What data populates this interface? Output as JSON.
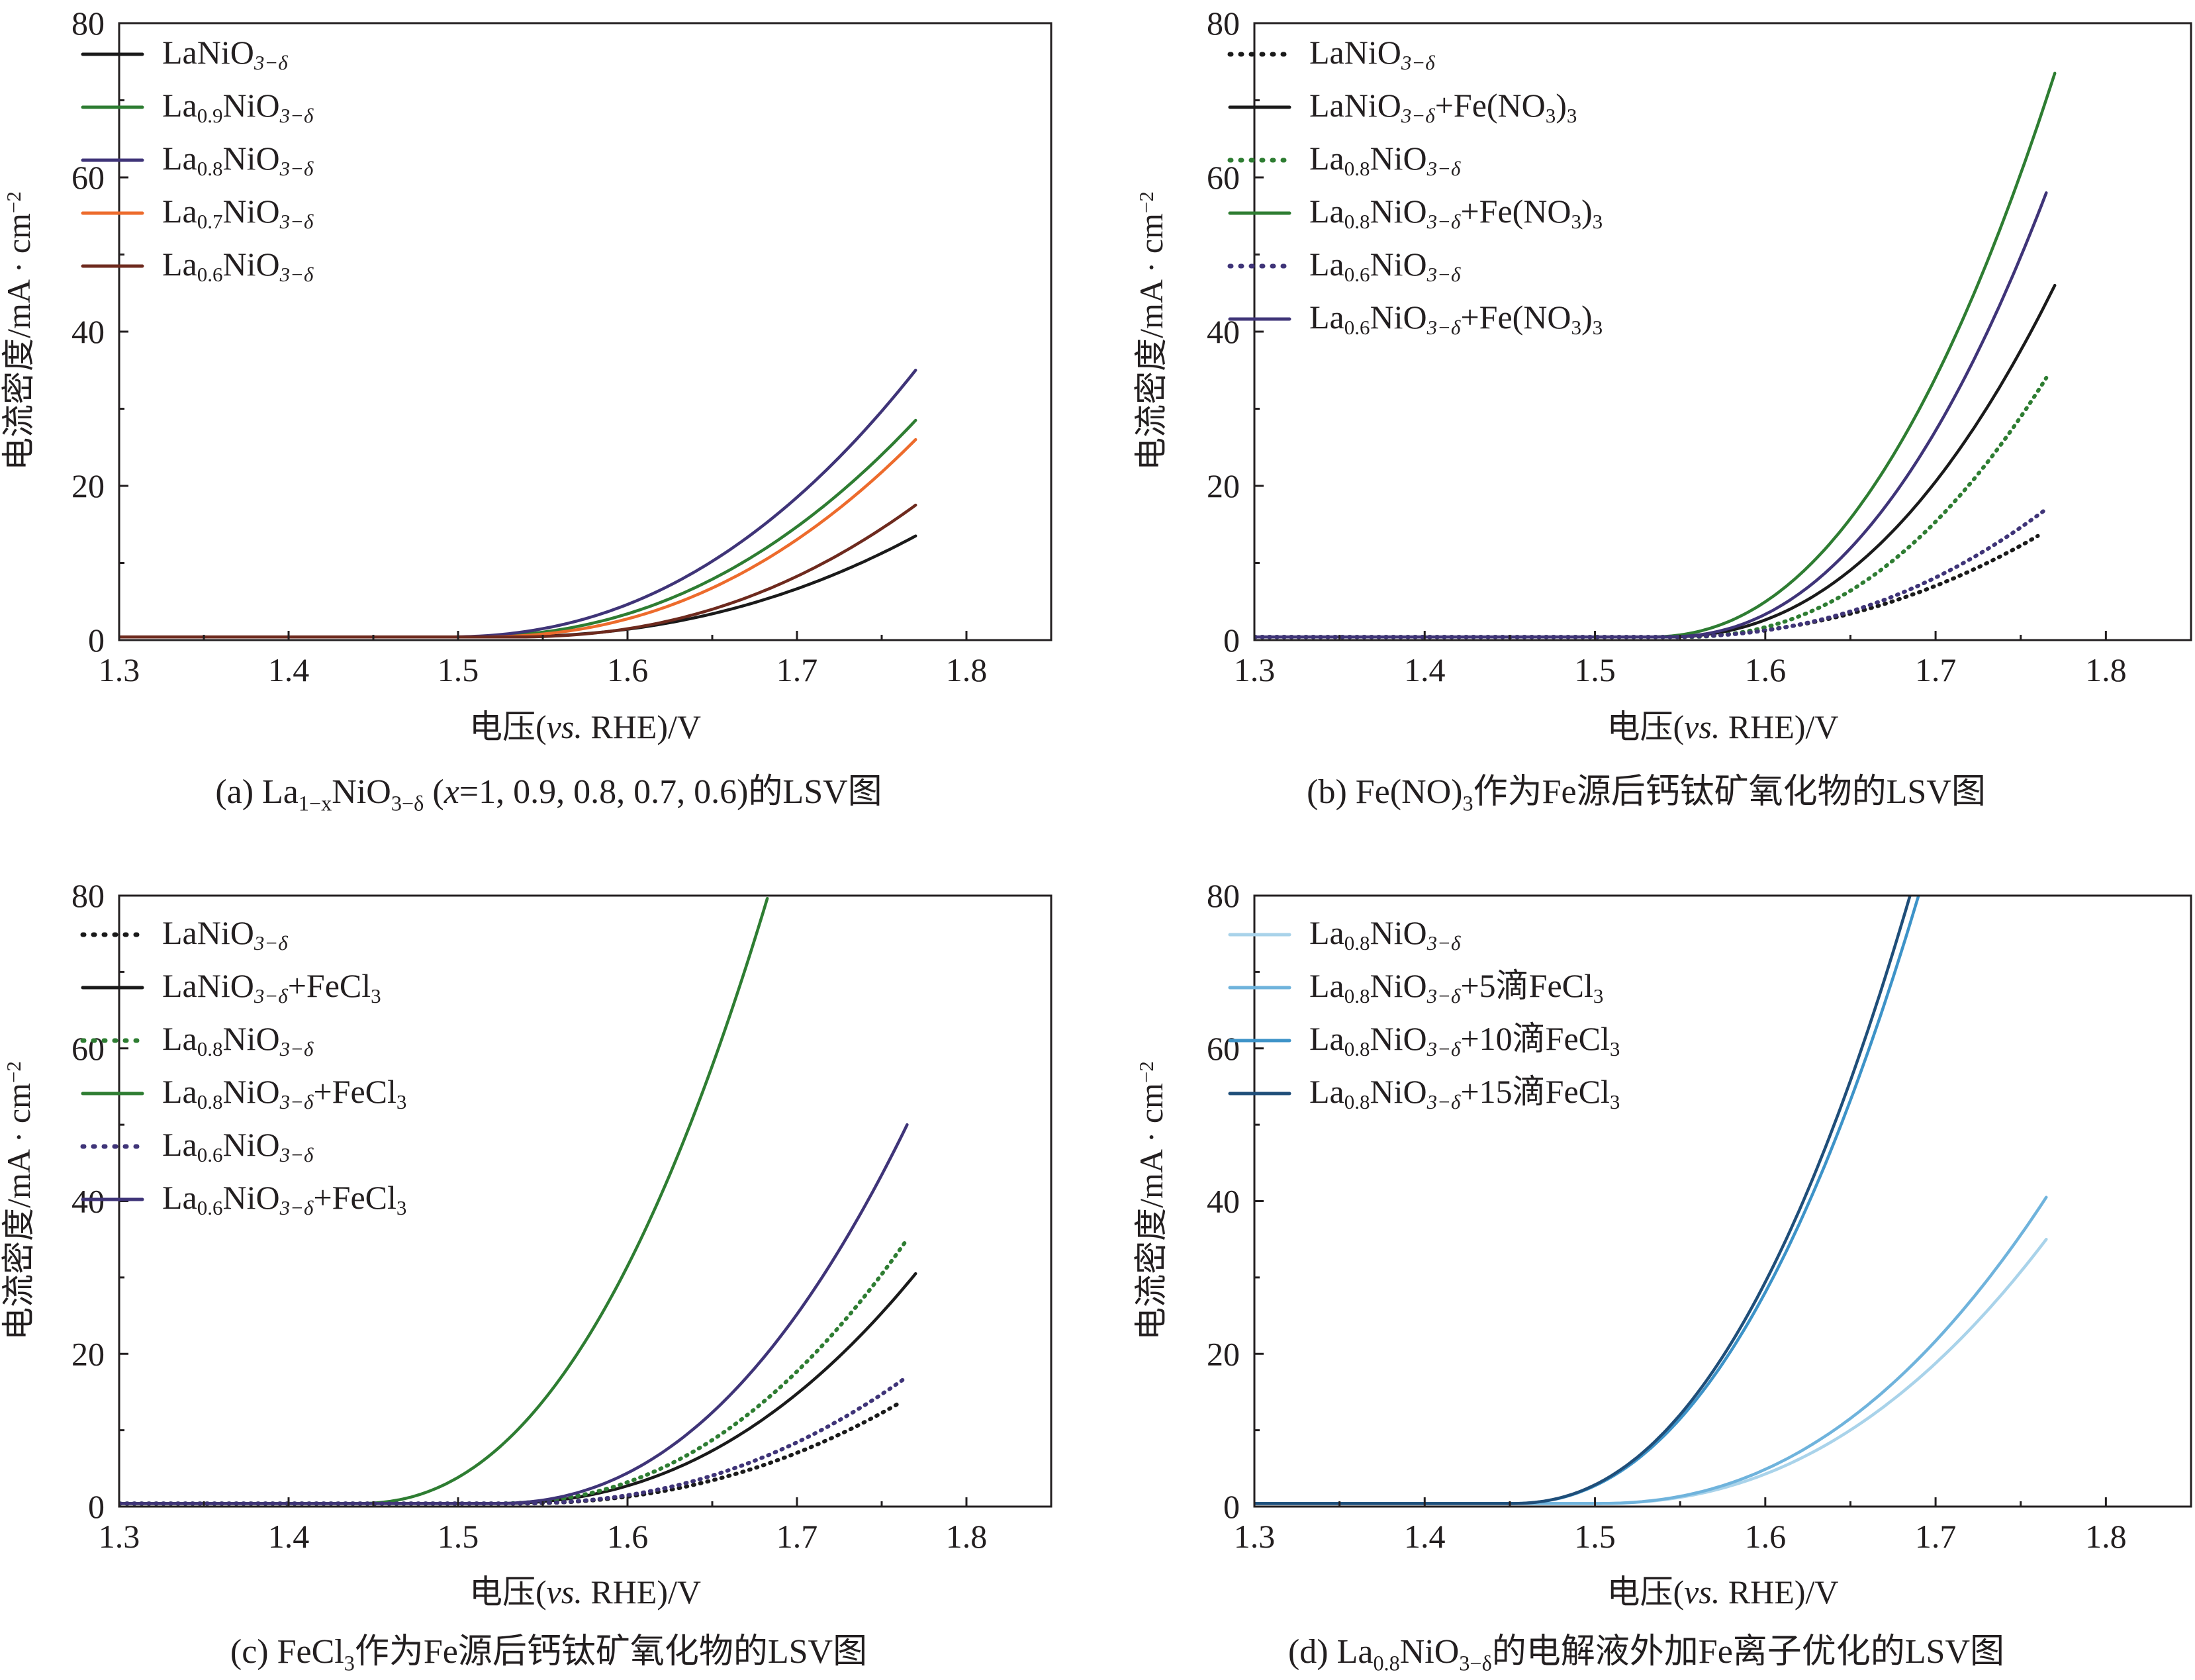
{
  "chart_data": [
    {
      "type": "line",
      "panel_id": "a",
      "caption": "(a) La1−xNiO3−δ (x=1, 0.9, 0.8, 0.7, 0.6)的LSV图",
      "caption_parts": {
        "pre": "(a) La",
        "sub1": "1−x",
        "mid": "NiO",
        "sub2": "3−δ",
        "x_open": " (",
        "x_var": "x",
        "post": "=1, 0.9, 0.8, 0.7, 0.6)的LSV图"
      },
      "xlabel": "电压(vs. RHE)/V",
      "xlabel_parts": {
        "a": "电压(",
        "i": "vs.",
        "b": " RHE)/V"
      },
      "ylabel": "电流密度/mA · cm−2",
      "ylabel_parts": {
        "a": "电流密度/mA · cm",
        "sup": "−2"
      },
      "xlim": [
        1.3,
        1.85
      ],
      "ylim": [
        0,
        80
      ],
      "xticks": [
        "1.3",
        "1.4",
        "1.5",
        "1.6",
        "1.7",
        "1.8"
      ],
      "yticks": [
        "0",
        "20",
        "40",
        "60",
        "80"
      ],
      "series": [
        {
          "name": "LaNiO3−δ",
          "base": "LaNiO",
          "sub": "",
          "o_sub": "3−δ",
          "suffix": "",
          "color": "#1a1a1a",
          "dash": false,
          "model": {
            "onset": 1.52,
            "end": 1.77,
            "final": 13.5
          }
        },
        {
          "name": "La0.9NiO3−δ",
          "base": "La",
          "sub": "0.9",
          "o_sub": "3−δ",
          "suffix": "",
          "color": "#2e7d32",
          "dash": false,
          "model": {
            "onset": 1.5,
            "end": 1.77,
            "final": 28.5
          }
        },
        {
          "name": "La0.8NiO3−δ",
          "base": "La",
          "sub": "0.8",
          "o_sub": "3−δ",
          "suffix": "",
          "color": "#3f3478",
          "dash": false,
          "model": {
            "onset": 1.49,
            "end": 1.77,
            "final": 35
          }
        },
        {
          "name": "La0.7NiO3−δ",
          "base": "La",
          "sub": "0.7",
          "o_sub": "3−δ",
          "suffix": "",
          "color": "#ed6b2c",
          "dash": false,
          "model": {
            "onset": 1.51,
            "end": 1.77,
            "final": 26
          }
        },
        {
          "name": "La0.6NiO3−δ",
          "base": "La",
          "sub": "0.6",
          "o_sub": "3−δ",
          "suffix": "",
          "color": "#6e2a1e",
          "dash": false,
          "model": {
            "onset": 1.53,
            "end": 1.77,
            "final": 17.5
          }
        }
      ]
    },
    {
      "type": "line",
      "panel_id": "b",
      "caption": "(b) Fe(NO)3作为Fe源后钙钛矿氧化物的LSV图",
      "caption_parts": {
        "pre": "(b) Fe(NO)",
        "sub1": "3",
        "post": "作为Fe源后钙钛矿氧化物的LSV图"
      },
      "xlabel": "电压(vs. RHE)/V",
      "xlabel_parts": {
        "a": "电压(",
        "i": "vs.",
        "b": " RHE)/V"
      },
      "ylabel": "电流密度/mA · cm−2",
      "ylabel_parts": {
        "a": "电流密度/mA · cm",
        "sup": "−2"
      },
      "xlim": [
        1.3,
        1.85
      ],
      "ylim": [
        0,
        80
      ],
      "xticks": [
        "1.3",
        "1.4",
        "1.5",
        "1.6",
        "1.7",
        "1.8"
      ],
      "yticks": [
        "0",
        "20",
        "40",
        "60",
        "80"
      ],
      "series": [
        {
          "name": "LaNiO3−δ",
          "base": "LaNiO",
          "sub": "",
          "o_sub": "3−δ",
          "suffix": "",
          "color": "#1a1a1a",
          "dash": true,
          "model": {
            "onset": 1.53,
            "end": 1.76,
            "final": 13.5
          }
        },
        {
          "name": "LaNiO3−δ+Fe(NO3)3",
          "base": "LaNiO",
          "sub": "",
          "o_sub": "3−δ",
          "suffix": "+Fe(NO3)3",
          "color": "#1a1a1a",
          "dash": false,
          "model": {
            "onset": 1.54,
            "end": 1.77,
            "final": 46
          }
        },
        {
          "name": "La0.8NiO3−δ",
          "base": "La",
          "sub": "0.8",
          "o_sub": "3−δ",
          "suffix": "",
          "color": "#2e7d32",
          "dash": true,
          "model": {
            "onset": 1.55,
            "end": 1.765,
            "final": 34
          }
        },
        {
          "name": "La0.8NiO3−δ+Fe(NO3)3",
          "base": "La",
          "sub": "0.8",
          "o_sub": "3−δ",
          "suffix": "+Fe(NO3)3",
          "color": "#2e7d32",
          "dash": false,
          "model": {
            "onset": 1.53,
            "end": 1.77,
            "final": 73.5
          }
        },
        {
          "name": "La0.6NiO3−δ",
          "base": "La",
          "sub": "0.6",
          "o_sub": "3−δ",
          "suffix": "",
          "color": "#3f3478",
          "dash": true,
          "model": {
            "onset": 1.54,
            "end": 1.765,
            "final": 17
          }
        },
        {
          "name": "La0.6NiO3−δ+Fe(NO3)3",
          "base": "La",
          "sub": "0.6",
          "o_sub": "3−δ",
          "suffix": "+Fe(NO3)3",
          "color": "#3f3478",
          "dash": false,
          "model": {
            "onset": 1.54,
            "end": 1.765,
            "final": 58
          }
        }
      ]
    },
    {
      "type": "line",
      "panel_id": "c",
      "caption": "(c) FeCl3作为Fe源后钙钛矿氧化物的LSV图",
      "caption_parts": {
        "pre": "(c) FeCl",
        "sub1": "3",
        "post": "作为Fe源后钙钛矿氧化物的LSV图"
      },
      "xlabel": "电压(vs. RHE)/V",
      "xlabel_parts": {
        "a": "电压(",
        "i": "vs.",
        "b": " RHE)/V"
      },
      "ylabel": "电流密度/mA · cm−2",
      "ylabel_parts": {
        "a": "电流密度/mA · cm",
        "sup": "−2"
      },
      "xlim": [
        1.3,
        1.85
      ],
      "ylim": [
        0,
        80
      ],
      "xticks": [
        "1.3",
        "1.4",
        "1.5",
        "1.6",
        "1.7",
        "1.8"
      ],
      "yticks": [
        "0",
        "20",
        "40",
        "60",
        "80"
      ],
      "series": [
        {
          "name": "LaNiO3−δ",
          "base": "LaNiO",
          "sub": "",
          "o_sub": "3−δ",
          "suffix": "",
          "color": "#1a1a1a",
          "dash": true,
          "model": {
            "onset": 1.53,
            "end": 1.76,
            "final": 13.5
          }
        },
        {
          "name": "LaNiO3−δ+FeCl3",
          "base": "LaNiO",
          "sub": "",
          "o_sub": "3−δ",
          "suffix": "+FeCl3",
          "color": "#1a1a1a",
          "dash": false,
          "model": {
            "onset": 1.52,
            "end": 1.77,
            "final": 30.5
          }
        },
        {
          "name": "La0.8NiO3−δ",
          "base": "La",
          "sub": "0.8",
          "o_sub": "3−δ",
          "suffix": "",
          "color": "#2e7d32",
          "dash": true,
          "model": {
            "onset": 1.52,
            "end": 1.765,
            "final": 35
          }
        },
        {
          "name": "La0.8NiO3−δ+FeCl3",
          "base": "La",
          "sub": "0.8",
          "o_sub": "3−δ",
          "suffix": "+FeCl3",
          "color": "#2e7d32",
          "dash": false,
          "model": {
            "onset": 1.44,
            "end": 1.683,
            "final": 80
          }
        },
        {
          "name": "La0.6NiO3−δ",
          "base": "La",
          "sub": "0.6",
          "o_sub": "3−δ",
          "suffix": "",
          "color": "#3f3478",
          "dash": true,
          "model": {
            "onset": 1.53,
            "end": 1.765,
            "final": 17
          }
        },
        {
          "name": "La0.6NiO3−δ+FeCl3",
          "base": "La",
          "sub": "0.6",
          "o_sub": "3−δ",
          "suffix": "+FeCl3",
          "color": "#3f3478",
          "dash": false,
          "model": {
            "onset": 1.52,
            "end": 1.765,
            "final": 50
          }
        }
      ]
    },
    {
      "type": "line",
      "panel_id": "d",
      "caption": "(d) La0.8NiO3−δ的电解液外加Fe离子优化的LSV图",
      "caption_parts": {
        "pre": "(d) La",
        "sub1": "0.8",
        "mid": "NiO",
        "sub2": "3−δ",
        "post": "的电解液外加Fe离子优化的LSV图"
      },
      "xlabel": "电压(vs. RHE)/V",
      "xlabel_parts": {
        "a": "电压(",
        "i": "vs.",
        "b": " RHE)/V"
      },
      "ylabel": "电流密度/mA · cm−2",
      "ylabel_parts": {
        "a": "电流密度/mA · cm",
        "sup": "−2"
      },
      "xlim": [
        1.3,
        1.85
      ],
      "ylim": [
        0,
        80
      ],
      "xticks": [
        "1.3",
        "1.4",
        "1.5",
        "1.6",
        "1.7",
        "1.8"
      ],
      "yticks": [
        "0",
        "20",
        "40",
        "60",
        "80"
      ],
      "series": [
        {
          "name": "La0.8NiO3−δ",
          "base": "La",
          "sub": "0.8",
          "o_sub": "3−δ",
          "suffix": "",
          "color": "#a9d3ea",
          "dash": false,
          "model": {
            "onset": 1.5,
            "end": 1.765,
            "final": 35
          }
        },
        {
          "name": "La0.8NiO3−δ+5滴FeCl3",
          "base": "La",
          "sub": "0.8",
          "o_sub": "3−δ",
          "suffix": "+5滴FeCl3",
          "color": "#6fb3dc",
          "dash": false,
          "model": {
            "onset": 1.5,
            "end": 1.765,
            "final": 40.5
          }
        },
        {
          "name": "La0.8NiO3−δ+10滴FeCl3",
          "base": "La",
          "sub": "0.8",
          "o_sub": "3−δ",
          "suffix": "+10滴FeCl3",
          "color": "#3d93c8",
          "dash": false,
          "model": {
            "onset": 1.45,
            "end": 1.69,
            "final": 80
          }
        },
        {
          "name": "La0.8NiO3−δ+15滴FeCl3",
          "base": "La",
          "sub": "0.8",
          "o_sub": "3−δ",
          "suffix": "+15滴FeCl3",
          "color": "#1f4e79",
          "dash": false,
          "model": {
            "onset": 1.45,
            "end": 1.685,
            "final": 80
          }
        }
      ]
    }
  ]
}
